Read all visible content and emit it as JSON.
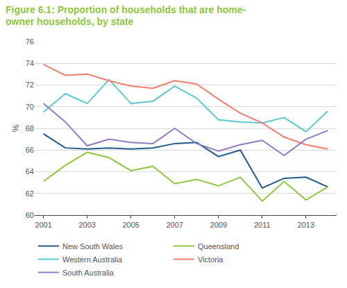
{
  "chart_data": {
    "type": "line",
    "title": "Figure 6.1: Proportion of households that are home-owner households, by state",
    "y_label": "%",
    "x": [
      2001,
      2002,
      2003,
      2004,
      2005,
      2006,
      2007,
      2008,
      2009,
      2010,
      2011,
      2012,
      2013,
      2014
    ],
    "xlim": [
      2000.6,
      2014.4
    ],
    "xticks": [
      2001,
      2003,
      2005,
      2007,
      2009,
      2011,
      2013
    ],
    "ylim": [
      60,
      76
    ],
    "yticks": [
      60,
      62,
      64,
      66,
      68,
      70,
      72,
      74,
      76
    ],
    "grid": true,
    "legend": "bottom",
    "series": [
      {
        "name": "New South Wales",
        "color": "#1f5a8a",
        "values": [
          67.5,
          66.2,
          66.1,
          66.2,
          66.1,
          66.2,
          66.6,
          66.7,
          65.4,
          66.0,
          62.5,
          63.4,
          63.5,
          62.6
        ]
      },
      {
        "name": "Queensland",
        "color": "#8dc63f",
        "values": [
          63.1,
          64.6,
          65.8,
          65.3,
          64.1,
          64.5,
          62.9,
          63.3,
          62.7,
          63.5,
          61.3,
          63.1,
          61.4,
          62.6
        ]
      },
      {
        "name": "Western Australia",
        "color": "#5bc8d0",
        "values": [
          69.5,
          71.2,
          70.3,
          72.5,
          70.3,
          70.5,
          71.9,
          70.8,
          68.8,
          68.6,
          68.5,
          69.0,
          67.7,
          69.6
        ]
      },
      {
        "name": "Victoria",
        "color": "#f07e6e",
        "values": [
          73.9,
          72.9,
          73.0,
          72.4,
          71.9,
          71.7,
          72.4,
          72.1,
          70.7,
          69.4,
          68.5,
          67.2,
          66.5,
          66.1
        ]
      },
      {
        "name": "South Australia",
        "color": "#8e7cc3",
        "values": [
          70.3,
          68.6,
          66.4,
          67.0,
          66.7,
          66.6,
          68.0,
          66.6,
          65.9,
          66.5,
          66.9,
          65.5,
          67.0,
          67.8
        ]
      }
    ]
  }
}
